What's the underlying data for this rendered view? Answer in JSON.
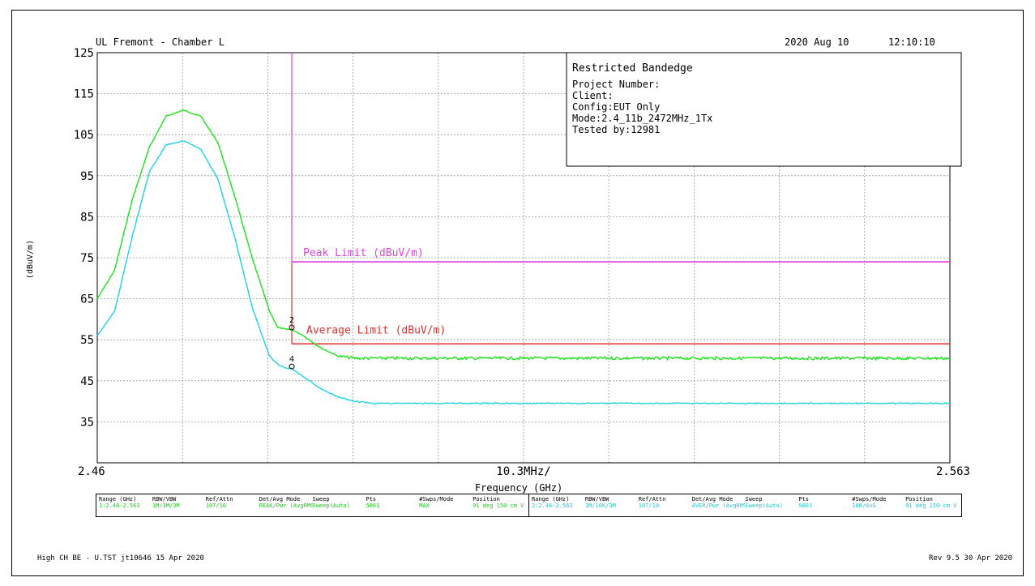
{
  "header": {
    "site": "UL Fremont - Chamber L",
    "date": "2020 Aug 10",
    "time": "12:10:10"
  },
  "info_box": {
    "title": "Restricted Bandedge",
    "lines": [
      "Project Number:",
      "Client:",
      "Config:EUT Only",
      "Mode:2.4_11b_2472MHz_1Tx",
      "Tested by:12981"
    ]
  },
  "chart_data": {
    "type": "line",
    "title": "Restricted Bandedge",
    "xlabel": "Frequency (GHz)",
    "ylabel": "(dBuV/m)",
    "xlim": [
      2.46,
      2.563
    ],
    "ylim": [
      25,
      125
    ],
    "x_tick_labels": [
      "2.46",
      "10.3MHz/",
      "2.563"
    ],
    "y_ticks": [
      125,
      115,
      105,
      95,
      85,
      75,
      65,
      55,
      45,
      35
    ],
    "grid": true,
    "colors": {
      "peak_trace": "#19e619",
      "avg_trace": "#1fd3e6",
      "peak_limit": "#e63ee6",
      "avg_limit": "#e62e2e",
      "band_edge": "#e63ee6"
    },
    "band_edge_x": 2.4835,
    "limits": [
      {
        "name": "Peak Limit (dBuV/m)",
        "value": 74
      },
      {
        "name": "Average Limit (dBuV/m)",
        "value": 54
      }
    ],
    "series": [
      {
        "x": [
          2.46,
          2.4621,
          2.4642,
          2.4663,
          2.4683,
          2.4704,
          2.4725,
          2.4746,
          2.4766,
          2.4787,
          2.4808,
          2.4818,
          2.4829,
          2.4835,
          2.4849,
          2.487,
          2.4891,
          2.4911,
          2.4932,
          2.4953,
          2.5015,
          2.5118,
          2.5221,
          2.5324,
          2.5427,
          2.553,
          2.563
        ],
        "y": [
          65,
          72,
          89,
          102,
          109.5,
          111,
          109.5,
          103,
          90,
          75,
          62,
          58,
          57.5,
          57.5,
          56,
          53,
          51,
          50.5,
          50.5,
          50.5,
          50.5,
          50.5,
          50.5,
          50.5,
          50.5,
          50.5,
          50.5
        ]
      },
      {
        "x": [
          2.46,
          2.4621,
          2.4642,
          2.4663,
          2.4683,
          2.4704,
          2.4725,
          2.4746,
          2.4766,
          2.4787,
          2.4808,
          2.4818,
          2.4829,
          2.4835,
          2.4849,
          2.487,
          2.4891,
          2.4911,
          2.4932,
          2.4953,
          2.5015,
          2.5118,
          2.5221,
          2.5324,
          2.5427,
          2.553,
          2.563
        ],
        "y": [
          56,
          62,
          80,
          96,
          102.5,
          103.5,
          101.5,
          94,
          80,
          63,
          51,
          49,
          48,
          48,
          46,
          43,
          41,
          40,
          39.5,
          39.5,
          39.5,
          39.5,
          39.5,
          39.5,
          39.5,
          39.5,
          39.5
        ]
      }
    ],
    "markers": [
      {
        "label": "2",
        "x": 2.4835,
        "y": 58
      },
      {
        "label": "4",
        "x": 2.4835,
        "y": 48.5
      }
    ]
  },
  "settings_table": {
    "headers": [
      "Range (GHz)",
      "RBW/VBW",
      "Ref/Attn",
      "Det/Avg Mode",
      "Sweep",
      "Pts",
      "#Swps/Mode",
      "Position"
    ],
    "rows": [
      [
        "1:2.46-2.563",
        "1M/3M/3M",
        "107/10",
        "PEAK/Pwr (AvgRMS)",
        "Sweep(Auto)",
        "5001",
        "MAX",
        "91 deg 150 cm V"
      ],
      [
        "2:2.46-2.563",
        "1M/10K/3M",
        "107/10",
        "AVER/Pwr (AvgRMS)",
        "Sweep(Auto)",
        "5001",
        "100/AvG",
        "91 deg 150 cm V"
      ]
    ]
  },
  "footer": {
    "left": "High CH BE - U.TST jt10646 15 Apr 2020",
    "right": "Rev 9.5 30 Apr 2020"
  }
}
